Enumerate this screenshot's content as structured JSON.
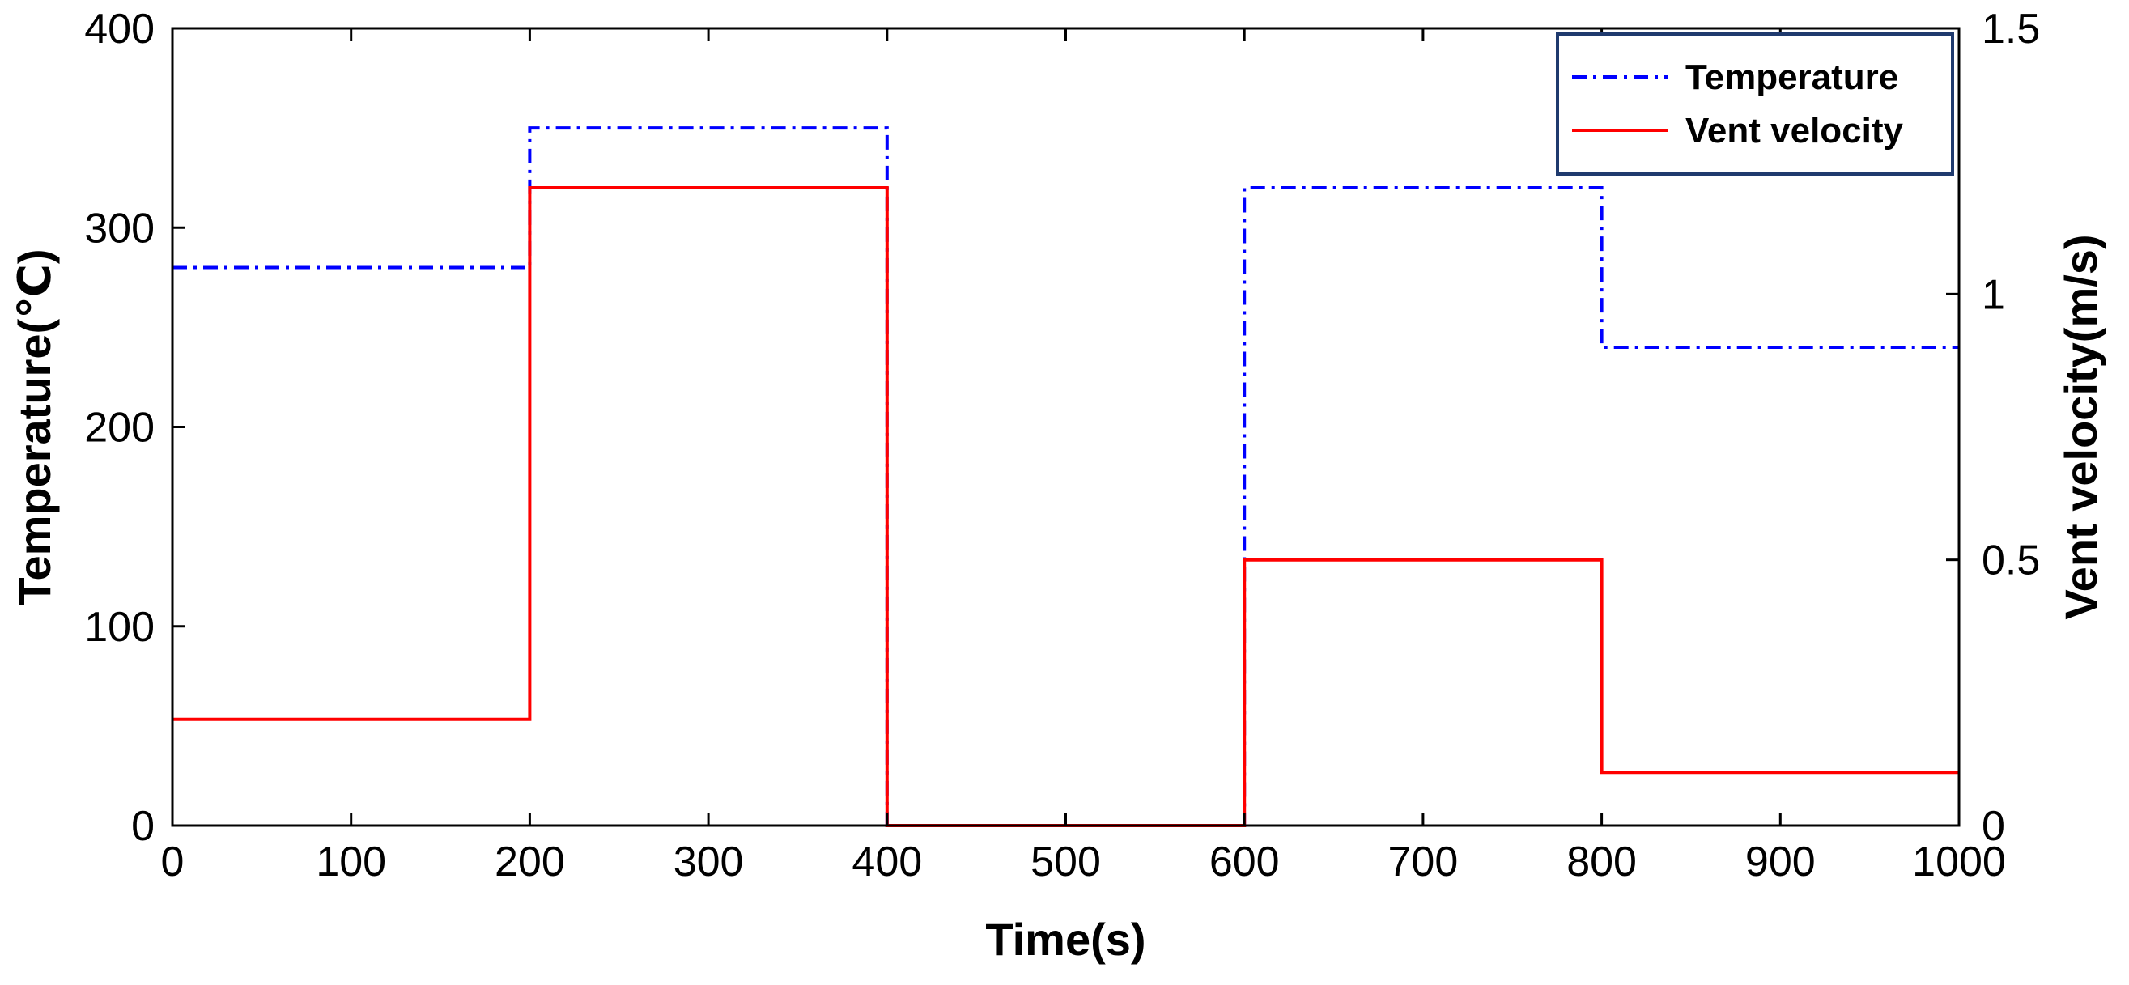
{
  "chart_data": {
    "type": "line",
    "step": "post",
    "xlabel": "Time(s)",
    "ylabel_left": "Temperature(℃)",
    "ylabel_right": "Vent velocity(m/s)",
    "xlim": [
      0,
      1000
    ],
    "ylim_left": [
      0,
      400
    ],
    "ylim_right": [
      0,
      1.5
    ],
    "x_ticks": [
      0,
      100,
      200,
      300,
      400,
      500,
      600,
      700,
      800,
      900,
      1000
    ],
    "x_tick_labels": [
      "0",
      "100",
      "200",
      "300",
      "400",
      "500",
      "600",
      "700",
      "800",
      "900",
      "1000"
    ],
    "y_left_ticks": [
      0,
      100,
      200,
      300,
      400
    ],
    "y_left_tick_labels": [
      "0",
      "100",
      "200",
      "300",
      "400"
    ],
    "y_right_ticks": [
      0,
      0.5,
      1,
      1.5
    ],
    "y_right_tick_labels": [
      "0",
      "0.5",
      "1",
      "1.5"
    ],
    "grid": false,
    "legend_position": "top-right",
    "series": [
      {
        "name": "Temperature",
        "axis": "left",
        "color": "#0000ff",
        "line_style": "dash-dot",
        "x": [
          0,
          200,
          200,
          400,
          400,
          600,
          600,
          800,
          800,
          1000
        ],
        "y": [
          280,
          280,
          350,
          350,
          0,
          0,
          320,
          320,
          240,
          240
        ]
      },
      {
        "name": "Vent velocity",
        "axis": "right",
        "color": "#ff0000",
        "line_style": "solid",
        "x": [
          0,
          200,
          200,
          400,
          400,
          600,
          600,
          800,
          800,
          1000
        ],
        "y": [
          0.2,
          0.2,
          1.2,
          1.2,
          0,
          0,
          0.5,
          0.5,
          0.1,
          0.1
        ]
      }
    ]
  }
}
